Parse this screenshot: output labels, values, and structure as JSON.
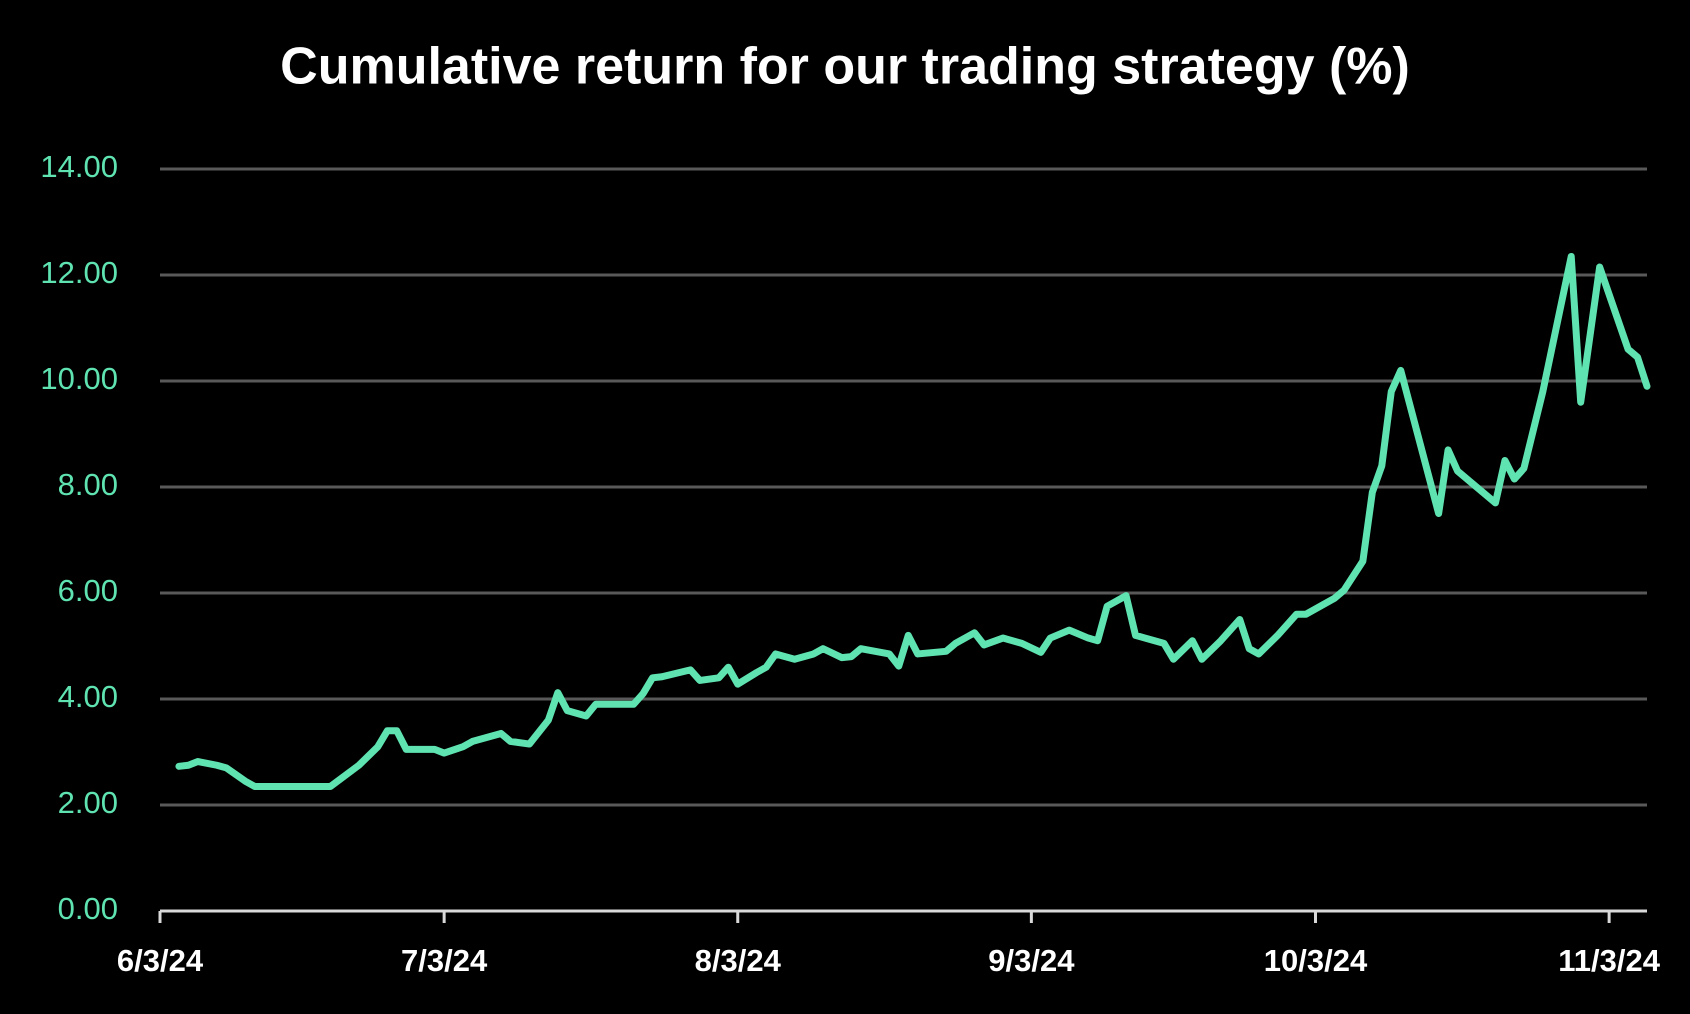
{
  "chart_data": {
    "type": "line",
    "title": "Cumulative return for our trading strategy (%)",
    "x": [
      "2024-06-05",
      "2024-06-06",
      "2024-06-07",
      "2024-06-09",
      "2024-06-10",
      "2024-06-12",
      "2024-06-13",
      "2024-06-16",
      "2024-06-19",
      "2024-06-21",
      "2024-06-24",
      "2024-06-26",
      "2024-06-27",
      "2024-06-28",
      "2024-06-29",
      "2024-07-02",
      "2024-07-03",
      "2024-07-05",
      "2024-07-06",
      "2024-07-09",
      "2024-07-10",
      "2024-07-12",
      "2024-07-14",
      "2024-07-15",
      "2024-07-16",
      "2024-07-18",
      "2024-07-19",
      "2024-07-23",
      "2024-07-24",
      "2024-07-25",
      "2024-07-26",
      "2024-07-29",
      "2024-07-30",
      "2024-08-01",
      "2024-08-02",
      "2024-08-03",
      "2024-08-05",
      "2024-08-06",
      "2024-08-07",
      "2024-08-09",
      "2024-08-11",
      "2024-08-12",
      "2024-08-14",
      "2024-08-15",
      "2024-08-16",
      "2024-08-19",
      "2024-08-20",
      "2024-08-21",
      "2024-08-22",
      "2024-08-25",
      "2024-08-26",
      "2024-08-28",
      "2024-08-29",
      "2024-08-31",
      "2024-09-02",
      "2024-09-04",
      "2024-09-05",
      "2024-09-07",
      "2024-09-09",
      "2024-09-10",
      "2024-09-11",
      "2024-09-13",
      "2024-09-14",
      "2024-09-17",
      "2024-09-18",
      "2024-09-20",
      "2024-09-21",
      "2024-09-23",
      "2024-09-25",
      "2024-09-26",
      "2024-09-27",
      "2024-09-29",
      "2024-10-01",
      "2024-10-02",
      "2024-10-05",
      "2024-10-06",
      "2024-10-08",
      "2024-10-09",
      "2024-10-10",
      "2024-10-11",
      "2024-10-12",
      "2024-10-16",
      "2024-10-17",
      "2024-10-18",
      "2024-10-22",
      "2024-10-23",
      "2024-10-24",
      "2024-10-25",
      "2024-10-27",
      "2024-10-30",
      "2024-10-31",
      "2024-11-02",
      "2024-11-05",
      "2024-11-06",
      "2024-11-07"
    ],
    "series": [
      {
        "name": "Cumulative return",
        "color": "#5fe3b1",
        "values": [
          2.73,
          2.75,
          2.82,
          2.75,
          2.7,
          2.45,
          2.35,
          2.35,
          2.35,
          2.35,
          2.75,
          3.1,
          3.4,
          3.4,
          3.05,
          3.05,
          2.98,
          3.1,
          3.2,
          3.35,
          3.2,
          3.15,
          3.6,
          4.12,
          3.78,
          3.68,
          3.9,
          3.9,
          4.1,
          4.4,
          4.42,
          4.55,
          4.35,
          4.4,
          4.6,
          4.28,
          4.5,
          4.6,
          4.85,
          4.75,
          4.85,
          4.95,
          4.78,
          4.8,
          4.95,
          4.85,
          4.62,
          5.2,
          4.85,
          4.9,
          5.05,
          5.25,
          5.02,
          5.15,
          5.05,
          4.88,
          5.15,
          5.3,
          5.15,
          5.1,
          5.75,
          5.95,
          5.2,
          5.05,
          4.75,
          5.1,
          4.75,
          5.1,
          5.5,
          4.95,
          4.85,
          5.2,
          5.6,
          5.6,
          5.9,
          6.05,
          6.6,
          7.9,
          8.4,
          9.8,
          10.2,
          7.5,
          8.7,
          8.3,
          7.7,
          8.5,
          8.15,
          8.35,
          9.8,
          12.35,
          9.6,
          12.15,
          10.6,
          10.45,
          9.9
        ]
      }
    ],
    "xlim": [
      "2024-06-03",
      "2024-11-07"
    ],
    "xticks": [
      {
        "value": "2024-06-03",
        "label": "6/3/24"
      },
      {
        "value": "2024-07-03",
        "label": "7/3/24"
      },
      {
        "value": "2024-08-03",
        "label": "8/3/24"
      },
      {
        "value": "2024-09-03",
        "label": "9/3/24"
      },
      {
        "value": "2024-10-03",
        "label": "10/3/24"
      },
      {
        "value": "2024-11-03",
        "label": "11/3/24"
      }
    ],
    "ylim": [
      0,
      14
    ],
    "yticks": [
      {
        "value": 0,
        "label": "0.00"
      },
      {
        "value": 2,
        "label": "2.00"
      },
      {
        "value": 4,
        "label": "4.00"
      },
      {
        "value": 6,
        "label": "6.00"
      },
      {
        "value": 8,
        "label": "8.00"
      },
      {
        "value": 10,
        "label": "10.00"
      },
      {
        "value": 12,
        "label": "12.00"
      },
      {
        "value": 14,
        "label": "14.00"
      }
    ],
    "grid": true
  }
}
